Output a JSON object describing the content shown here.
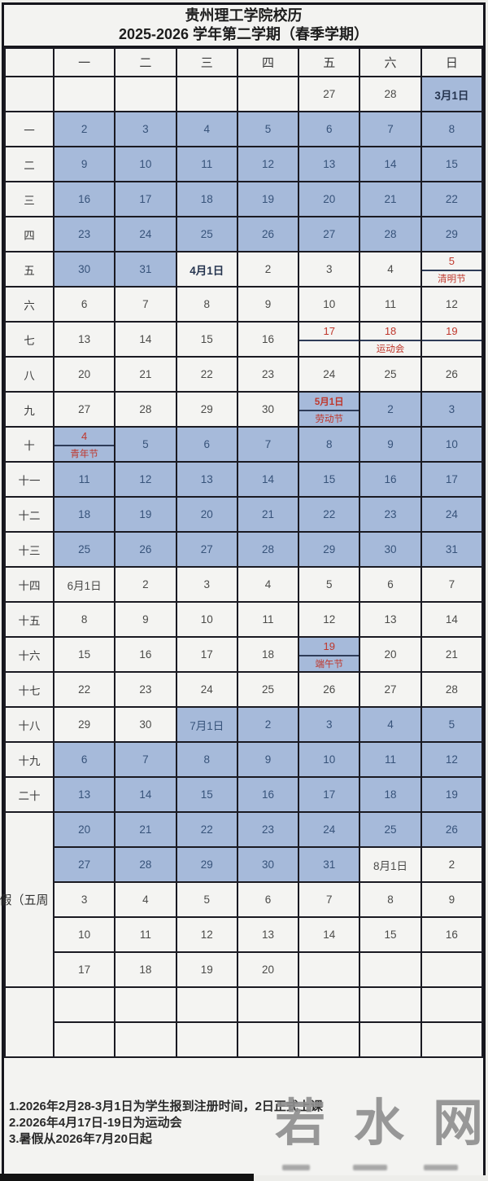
{
  "title": {
    "line1": "贵州理工学院校历",
    "line2": "2025-2026 学年第二学期（春季学期）"
  },
  "days_header": [
    "",
    "一",
    "二",
    "三",
    "四",
    "五",
    "六",
    "日"
  ],
  "colors": {
    "class_day_blue": "#a6bada",
    "cell_white": "#f4f4f2",
    "holiday_red": "#bf372c",
    "border_dark": "#1a1a22",
    "number_on_blue": "#37537a",
    "number_on_white": "#4b4b49"
  },
  "rows": [
    {
      "label": "",
      "bg": "w",
      "cells": [
        "",
        "",
        "",
        "",
        "27",
        "28",
        {
          "t": "3月1日",
          "g": "b",
          "bold": true
        }
      ]
    },
    {
      "label": "一",
      "bg": "b",
      "cells": [
        "2",
        "3",
        "4",
        "5",
        "6",
        "7",
        "8"
      ]
    },
    {
      "label": "二",
      "bg": "b",
      "cells": [
        "9",
        "10",
        "11",
        "12",
        "13",
        "14",
        "15"
      ]
    },
    {
      "label": "三",
      "bg": "b",
      "cells": [
        "16",
        "17",
        "18",
        "19",
        "20",
        "21",
        "22"
      ]
    },
    {
      "label": "四",
      "bg": "b",
      "cells": [
        "23",
        "24",
        "25",
        "26",
        "27",
        "28",
        "29"
      ]
    },
    {
      "label": "五",
      "bg": "w",
      "cells": [
        {
          "t": "30",
          "g": "b"
        },
        {
          "t": "31",
          "g": "b"
        },
        {
          "t": "4月1日",
          "bold": true
        },
        "2",
        "3",
        "4",
        {
          "t": "5",
          "s": "清明节",
          "r": true
        }
      ]
    },
    {
      "label": "六",
      "bg": "w",
      "cells": [
        "6",
        "7",
        "8",
        "9",
        "10",
        "11",
        "12"
      ]
    },
    {
      "label": "七",
      "bg": "w",
      "cells": [
        "13",
        "14",
        "15",
        "16",
        {
          "t": "17",
          "r": true,
          "sp": true
        },
        {
          "t": "18",
          "r": true,
          "sp": true,
          "s": "运动会"
        },
        {
          "t": "19",
          "r": true,
          "sp": true
        }
      ]
    },
    {
      "label": "八",
      "bg": "w",
      "cells": [
        "20",
        "21",
        "22",
        "23",
        "24",
        "25",
        "26"
      ]
    },
    {
      "label": "九",
      "bg": "w",
      "cells": [
        "27",
        "28",
        "29",
        "30",
        {
          "t": "5月1日",
          "g": "b",
          "s": "劳动节",
          "r": true
        },
        {
          "t": "2",
          "g": "b"
        },
        {
          "t": "3",
          "g": "b"
        }
      ]
    },
    {
      "label": "十",
      "bg": "b",
      "cells": [
        {
          "t": "4",
          "s": "青年节",
          "r": true
        },
        "5",
        "6",
        "7",
        "8",
        "9",
        "10"
      ]
    },
    {
      "label": "十一",
      "bg": "b",
      "cells": [
        "11",
        "12",
        "13",
        "14",
        "15",
        "16",
        "17"
      ]
    },
    {
      "label": "十二",
      "bg": "b",
      "cells": [
        "18",
        "19",
        "20",
        "21",
        "22",
        "23",
        "24"
      ]
    },
    {
      "label": "十三",
      "bg": "b",
      "cells": [
        "25",
        "26",
        "27",
        "28",
        "29",
        "30",
        "31"
      ]
    },
    {
      "label": "十四",
      "bg": "w",
      "cells": [
        {
          "t": "6月1日"
        },
        "2",
        "3",
        "4",
        "5",
        "6",
        "7"
      ]
    },
    {
      "label": "十五",
      "bg": "w",
      "cells": [
        "8",
        "9",
        "10",
        "11",
        "12",
        "13",
        "14"
      ]
    },
    {
      "label": "十六",
      "bg": "w",
      "cells": [
        "15",
        "16",
        "17",
        "18",
        {
          "t": "19",
          "g": "b",
          "s": "端午节",
          "r": true
        },
        "20",
        "21"
      ]
    },
    {
      "label": "十七",
      "bg": "w",
      "cells": [
        "22",
        "23",
        "24",
        "25",
        "26",
        "27",
        "28"
      ]
    },
    {
      "label": "十八",
      "bg": "w",
      "cells": [
        "29",
        "30",
        {
          "t": "7月1日",
          "g": "b"
        },
        {
          "t": "2",
          "g": "b"
        },
        {
          "t": "3",
          "g": "b"
        },
        {
          "t": "4",
          "g": "b"
        },
        {
          "t": "5",
          "g": "b"
        }
      ]
    },
    {
      "label": "十九",
      "bg": "b",
      "cells": [
        "6",
        "7",
        "8",
        "9",
        "10",
        "11",
        "12"
      ]
    },
    {
      "label": "二十",
      "bg": "b",
      "cells": [
        "13",
        "14",
        "15",
        "16",
        "17",
        "18",
        "19"
      ]
    },
    {
      "label": "假（五周",
      "vac": true,
      "rowspan": 5,
      "bg": "b",
      "cells": [
        "20",
        "21",
        "22",
        "23",
        "24",
        "25",
        "26"
      ]
    },
    {
      "nolabel": true,
      "bg": "b",
      "cells": [
        "27",
        "28",
        "29",
        "30",
        "31",
        {
          "t": "8月1日",
          "g": "w"
        },
        {
          "t": "2",
          "g": "w"
        }
      ]
    },
    {
      "nolabel": true,
      "bg": "w",
      "cells": [
        "3",
        "4",
        "5",
        "6",
        "7",
        "8",
        "9"
      ]
    },
    {
      "nolabel": true,
      "bg": "w",
      "cells": [
        "10",
        "11",
        "12",
        "13",
        "14",
        "15",
        "16"
      ]
    },
    {
      "nolabel": true,
      "bg": "w",
      "cells": [
        "17",
        "18",
        "19",
        "20",
        "",
        "",
        ""
      ]
    },
    {
      "label": "",
      "rowspan": 2,
      "bg": "w",
      "cells": [
        "",
        "",
        "",
        "",
        "",
        "",
        ""
      ]
    },
    {
      "nolabel": true,
      "bg": "w",
      "cells": [
        "",
        "",
        "",
        "",
        "",
        "",
        ""
      ]
    }
  ],
  "notes": [
    "1.2026年2月28-3月1日为学生报到注册时间，2日正式上课",
    "2.2026年4月17日-19日为运动会",
    "3.暑假从2026年7月20日起"
  ],
  "watermark": {
    "chars": [
      "若",
      "水",
      "网"
    ]
  }
}
